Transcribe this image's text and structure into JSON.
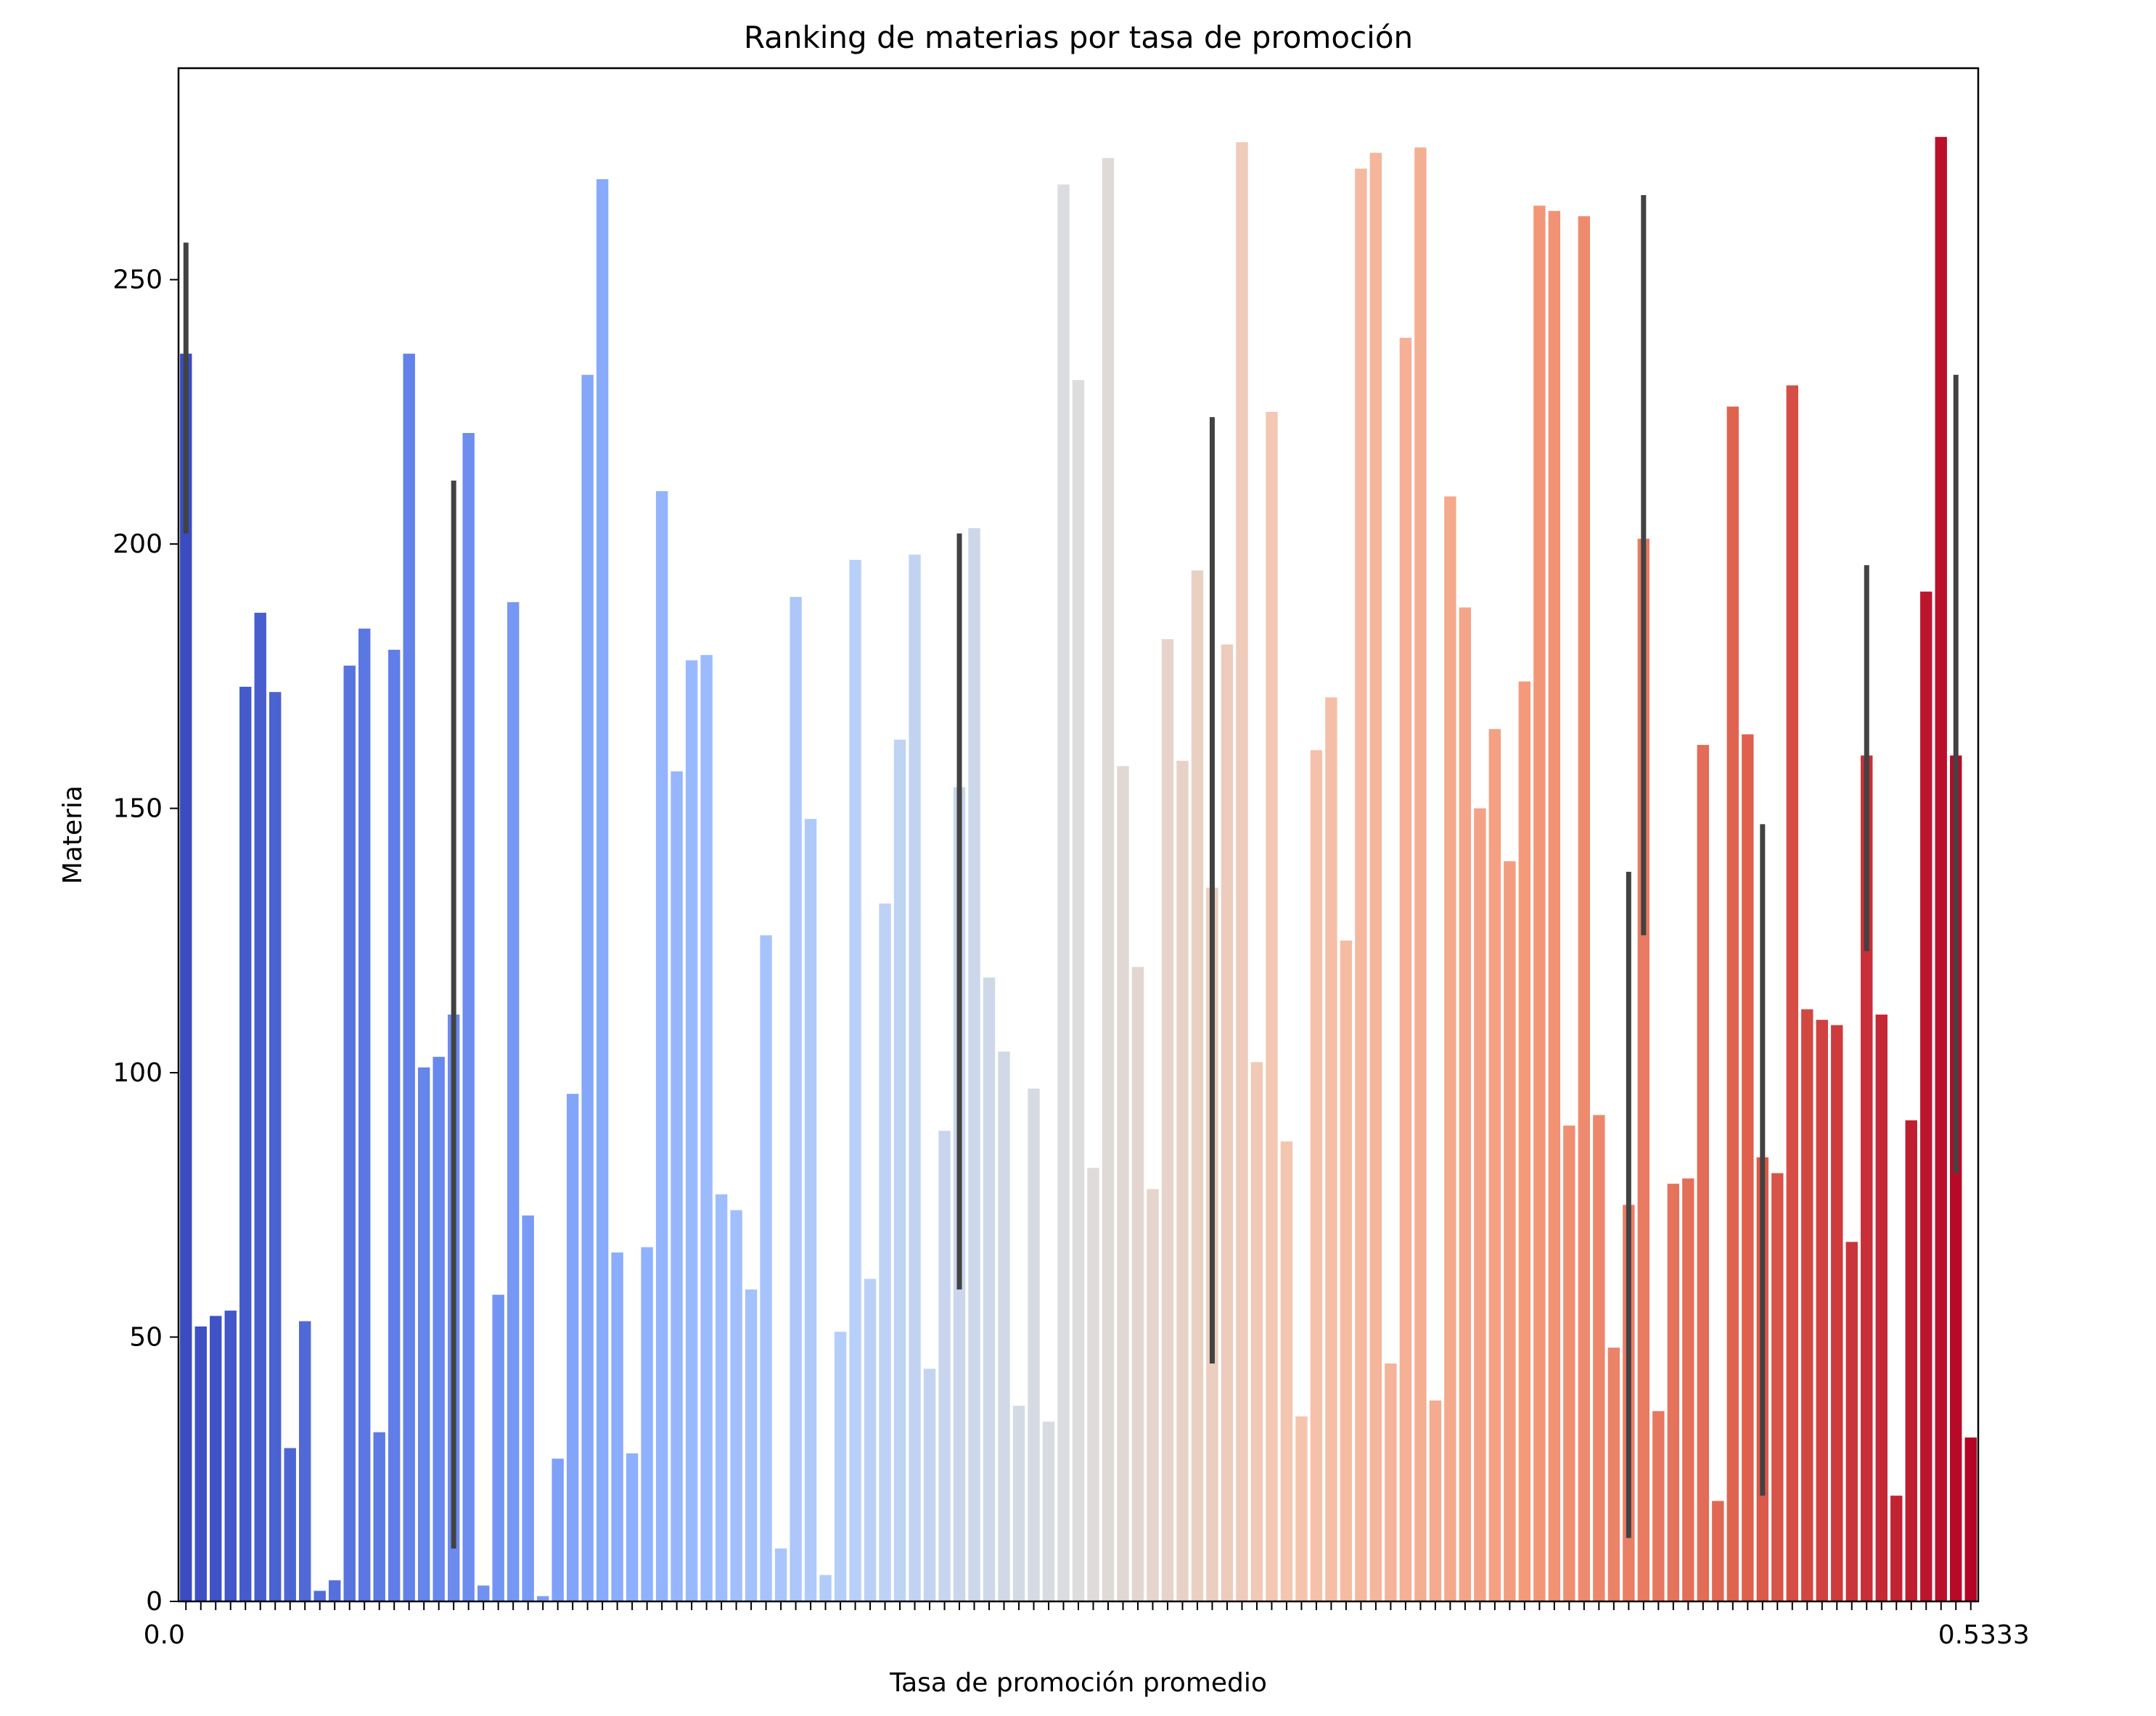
{
  "chart_data": {
    "type": "bar",
    "title": "Ranking de materias por tasa de promoción",
    "xlabel": "Tasa de promoción promedio",
    "ylabel": "Materia",
    "ylim": [
      0,
      290
    ],
    "yticks": [
      0,
      50,
      100,
      150,
      200,
      250
    ],
    "grid": false,
    "legend": "none",
    "palette": "coolwarm",
    "values": [
      236,
      52,
      54,
      55,
      173,
      187,
      172,
      29,
      53,
      2,
      4,
      177,
      184,
      32,
      180,
      236,
      101,
      103,
      111,
      221,
      3,
      58,
      189,
      73,
      1,
      27,
      96,
      232,
      269,
      66,
      28,
      67,
      210,
      157,
      178,
      179,
      77,
      74,
      59,
      126,
      10,
      190,
      148,
      5,
      51,
      197,
      61,
      132,
      163,
      198,
      44,
      89,
      154,
      203,
      118,
      104,
      37,
      97,
      34,
      268,
      231,
      82,
      273,
      158,
      120,
      78,
      182,
      159,
      195,
      135,
      181,
      276,
      102,
      225,
      87,
      35,
      161,
      171,
      125,
      271,
      274,
      45,
      239,
      275,
      38,
      209,
      188,
      150,
      165,
      140,
      174,
      264,
      263,
      90,
      262,
      92,
      48,
      75,
      201,
      36,
      79,
      80,
      162,
      19,
      226,
      164,
      84,
      81,
      230,
      112,
      110,
      109,
      68,
      160,
      111,
      20,
      91,
      191,
      277,
      160,
      31
    ],
    "error_bars": [
      {
        "index": 0,
        "low": 202,
        "high": 257
      },
      {
        "index": 18,
        "low": 10,
        "high": 212
      },
      {
        "index": 52,
        "low": 59,
        "high": 202
      },
      {
        "index": 69,
        "low": 45,
        "high": 224
      },
      {
        "index": 97,
        "low": 12,
        "high": 138
      },
      {
        "index": 98,
        "low": 126,
        "high": 266
      },
      {
        "index": 106,
        "low": 20,
        "high": 147
      },
      {
        "index": 113,
        "low": 123,
        "high": 196
      },
      {
        "index": 119,
        "low": 81,
        "high": 232
      }
    ],
    "x_tick_labels_first": "0.0",
    "x_tick_labels_last": "0.5333"
  }
}
